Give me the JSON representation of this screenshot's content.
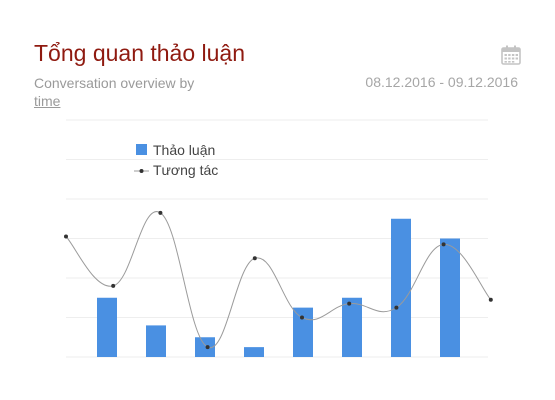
{
  "header": {
    "title": "Tổng quan thảo luận",
    "subtitle_text": "Conversation overview by",
    "subtitle_link": "time",
    "date_range": "08.12.2016 - 09.12.2016",
    "calendar_icon": "calendar-icon"
  },
  "colors": {
    "title": "#8f1a10",
    "bar": "#4a90e2",
    "line": "#9b9b9b",
    "point": "#333333",
    "grid": "#eeeeee"
  },
  "chart_data": {
    "type": "bar",
    "title": "",
    "xlabel": "",
    "ylabel": "",
    "grid": true,
    "legend_position": "top-left",
    "ylim": [
      0,
      12
    ],
    "series": [
      {
        "name": "Thảo luận",
        "type": "bar",
        "values": [
          3,
          1.6,
          1,
          0.5,
          2.5,
          3,
          7,
          6
        ]
      },
      {
        "name": "Tương tác",
        "type": "line",
        "values": [
          6.1,
          3.6,
          7.3,
          0.5,
          5,
          2,
          2.7,
          2.5,
          5.7,
          2.9
        ]
      }
    ]
  }
}
